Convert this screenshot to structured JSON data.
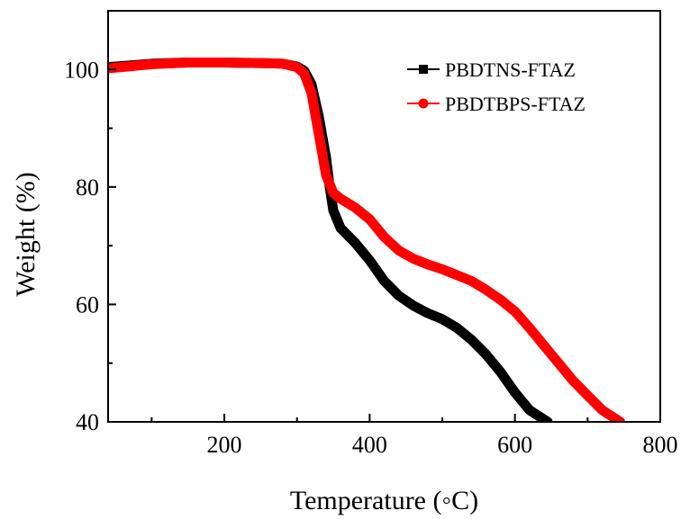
{
  "chart_data": {
    "type": "line",
    "title": "",
    "xlabel": "Temperature (◦C)",
    "ylabel": "Weight (%)",
    "xlim": [
      40,
      800
    ],
    "ylim": [
      40,
      110
    ],
    "x_ticks": [
      200,
      400,
      600,
      800
    ],
    "y_ticks": [
      40,
      60,
      80,
      100
    ],
    "grid": false,
    "legend_position": "top-right",
    "series": [
      {
        "name": "PBDTNS-FTAZ",
        "color": "#000000",
        "marker": "square",
        "x": [
          40,
          100,
          150,
          200,
          250,
          280,
          300,
          310,
          320,
          330,
          340,
          345,
          350,
          360,
          380,
          400,
          420,
          440,
          460,
          480,
          500,
          520,
          540,
          560,
          580,
          600,
          620,
          645
        ],
        "y": [
          100.4,
          101.0,
          101.2,
          101.2,
          101.1,
          101.0,
          100.5,
          99.8,
          97.5,
          92,
          85,
          80,
          76,
          73,
          70.5,
          67.5,
          64,
          61.5,
          59.8,
          58.5,
          57.5,
          56,
          54,
          51.5,
          48.5,
          45,
          42,
          40
        ]
      },
      {
        "name": "PBDTBPS-FTAZ",
        "color": "#ff0000",
        "marker": "circle",
        "x": [
          40,
          100,
          150,
          200,
          250,
          280,
          300,
          310,
          320,
          330,
          340,
          350,
          360,
          380,
          400,
          420,
          440,
          460,
          480,
          500,
          520,
          540,
          560,
          580,
          600,
          620,
          640,
          660,
          680,
          700,
          720,
          745
        ],
        "y": [
          100.2,
          100.9,
          101.2,
          101.2,
          101.1,
          101.0,
          100.4,
          99.3,
          96,
          89,
          82,
          79,
          78,
          76.5,
          74.5,
          71.5,
          69.2,
          67.8,
          66.8,
          66,
          65,
          64,
          62.5,
          60.8,
          58.8,
          56,
          53,
          50,
          47,
          44.5,
          42,
          40
        ]
      }
    ]
  }
}
